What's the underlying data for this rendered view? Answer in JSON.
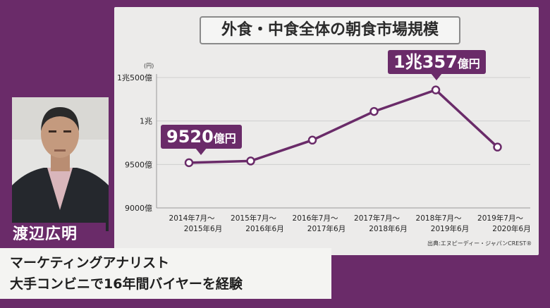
{
  "chart_data": {
    "type": "line",
    "title": "外食・中食全体の朝食市場規模",
    "unit": "(円)",
    "categories": [
      "2014年7月〜\n2015年6月",
      "2015年7月〜\n2016年6月",
      "2016年7月〜\n2017年6月",
      "2017年7月〜\n2018年6月",
      "2018年7月〜\n2019年6月",
      "2019年7月〜\n2020年6月"
    ],
    "values": [
      9520,
      9540,
      9780,
      10110,
      10357,
      9700
    ],
    "value_unit": "億円",
    "ylim": [
      9000,
      10500
    ],
    "yticks": [
      {
        "value": 9000,
        "label": "9000億"
      },
      {
        "value": 9500,
        "label": "9500億"
      },
      {
        "value": 10000,
        "label": "1兆"
      },
      {
        "value": 10500,
        "label": "1兆500億"
      }
    ],
    "grid": true,
    "line_color": "#6a2b69",
    "annotations": [
      {
        "index": 0,
        "main": "9520",
        "suffix": "億円"
      },
      {
        "index": 4,
        "main": "1兆357",
        "suffix": "億円"
      }
    ],
    "source": "出典:エヌピーディー・ジャパンCREST®"
  },
  "caption": {
    "name": "渡辺広明",
    "line1": "マーケティングアナリスト",
    "line2": "大手コンビニで16年間バイヤーを経験"
  },
  "colors": {
    "background": "#6a2b69",
    "board": "#ecebea",
    "grid": "#cfcfcf"
  }
}
